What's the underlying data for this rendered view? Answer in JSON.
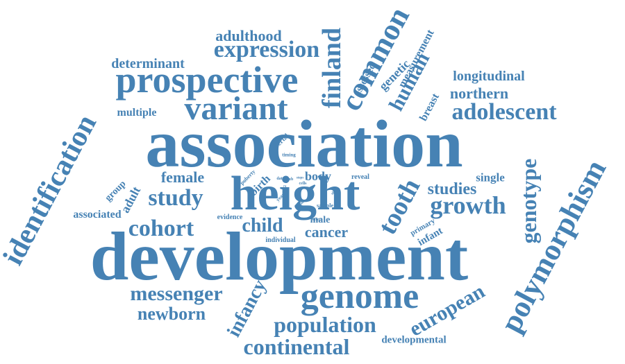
{
  "color": "#4682b4",
  "words": [
    "development",
    "association",
    "height",
    "polymorphism",
    "identification",
    "prospective",
    "variant",
    "genome",
    "expression",
    "common",
    "finland",
    "cohort",
    "growth",
    "tooth",
    "genotype",
    "continental",
    "population",
    "messenger",
    "study",
    "adolescent",
    "european",
    "child",
    "infancy",
    "newborn",
    "human",
    "adulthood",
    "determinant",
    "studies",
    "female",
    "cancer",
    "northern",
    "longitudinal",
    "associated",
    "adult",
    "multiple",
    "genetic",
    "measurement",
    "breast",
    "assessed",
    "single",
    "infant",
    "primary",
    "developmental",
    "group",
    "birth",
    "body",
    "male",
    "evidence",
    "individual",
    "pubertal",
    "timing",
    "puberty",
    "reveal",
    "sample",
    "effect",
    "year",
    "ship",
    "data",
    "hoxb",
    "cells",
    "steps",
    "sigma",
    "a2"
  ]
}
